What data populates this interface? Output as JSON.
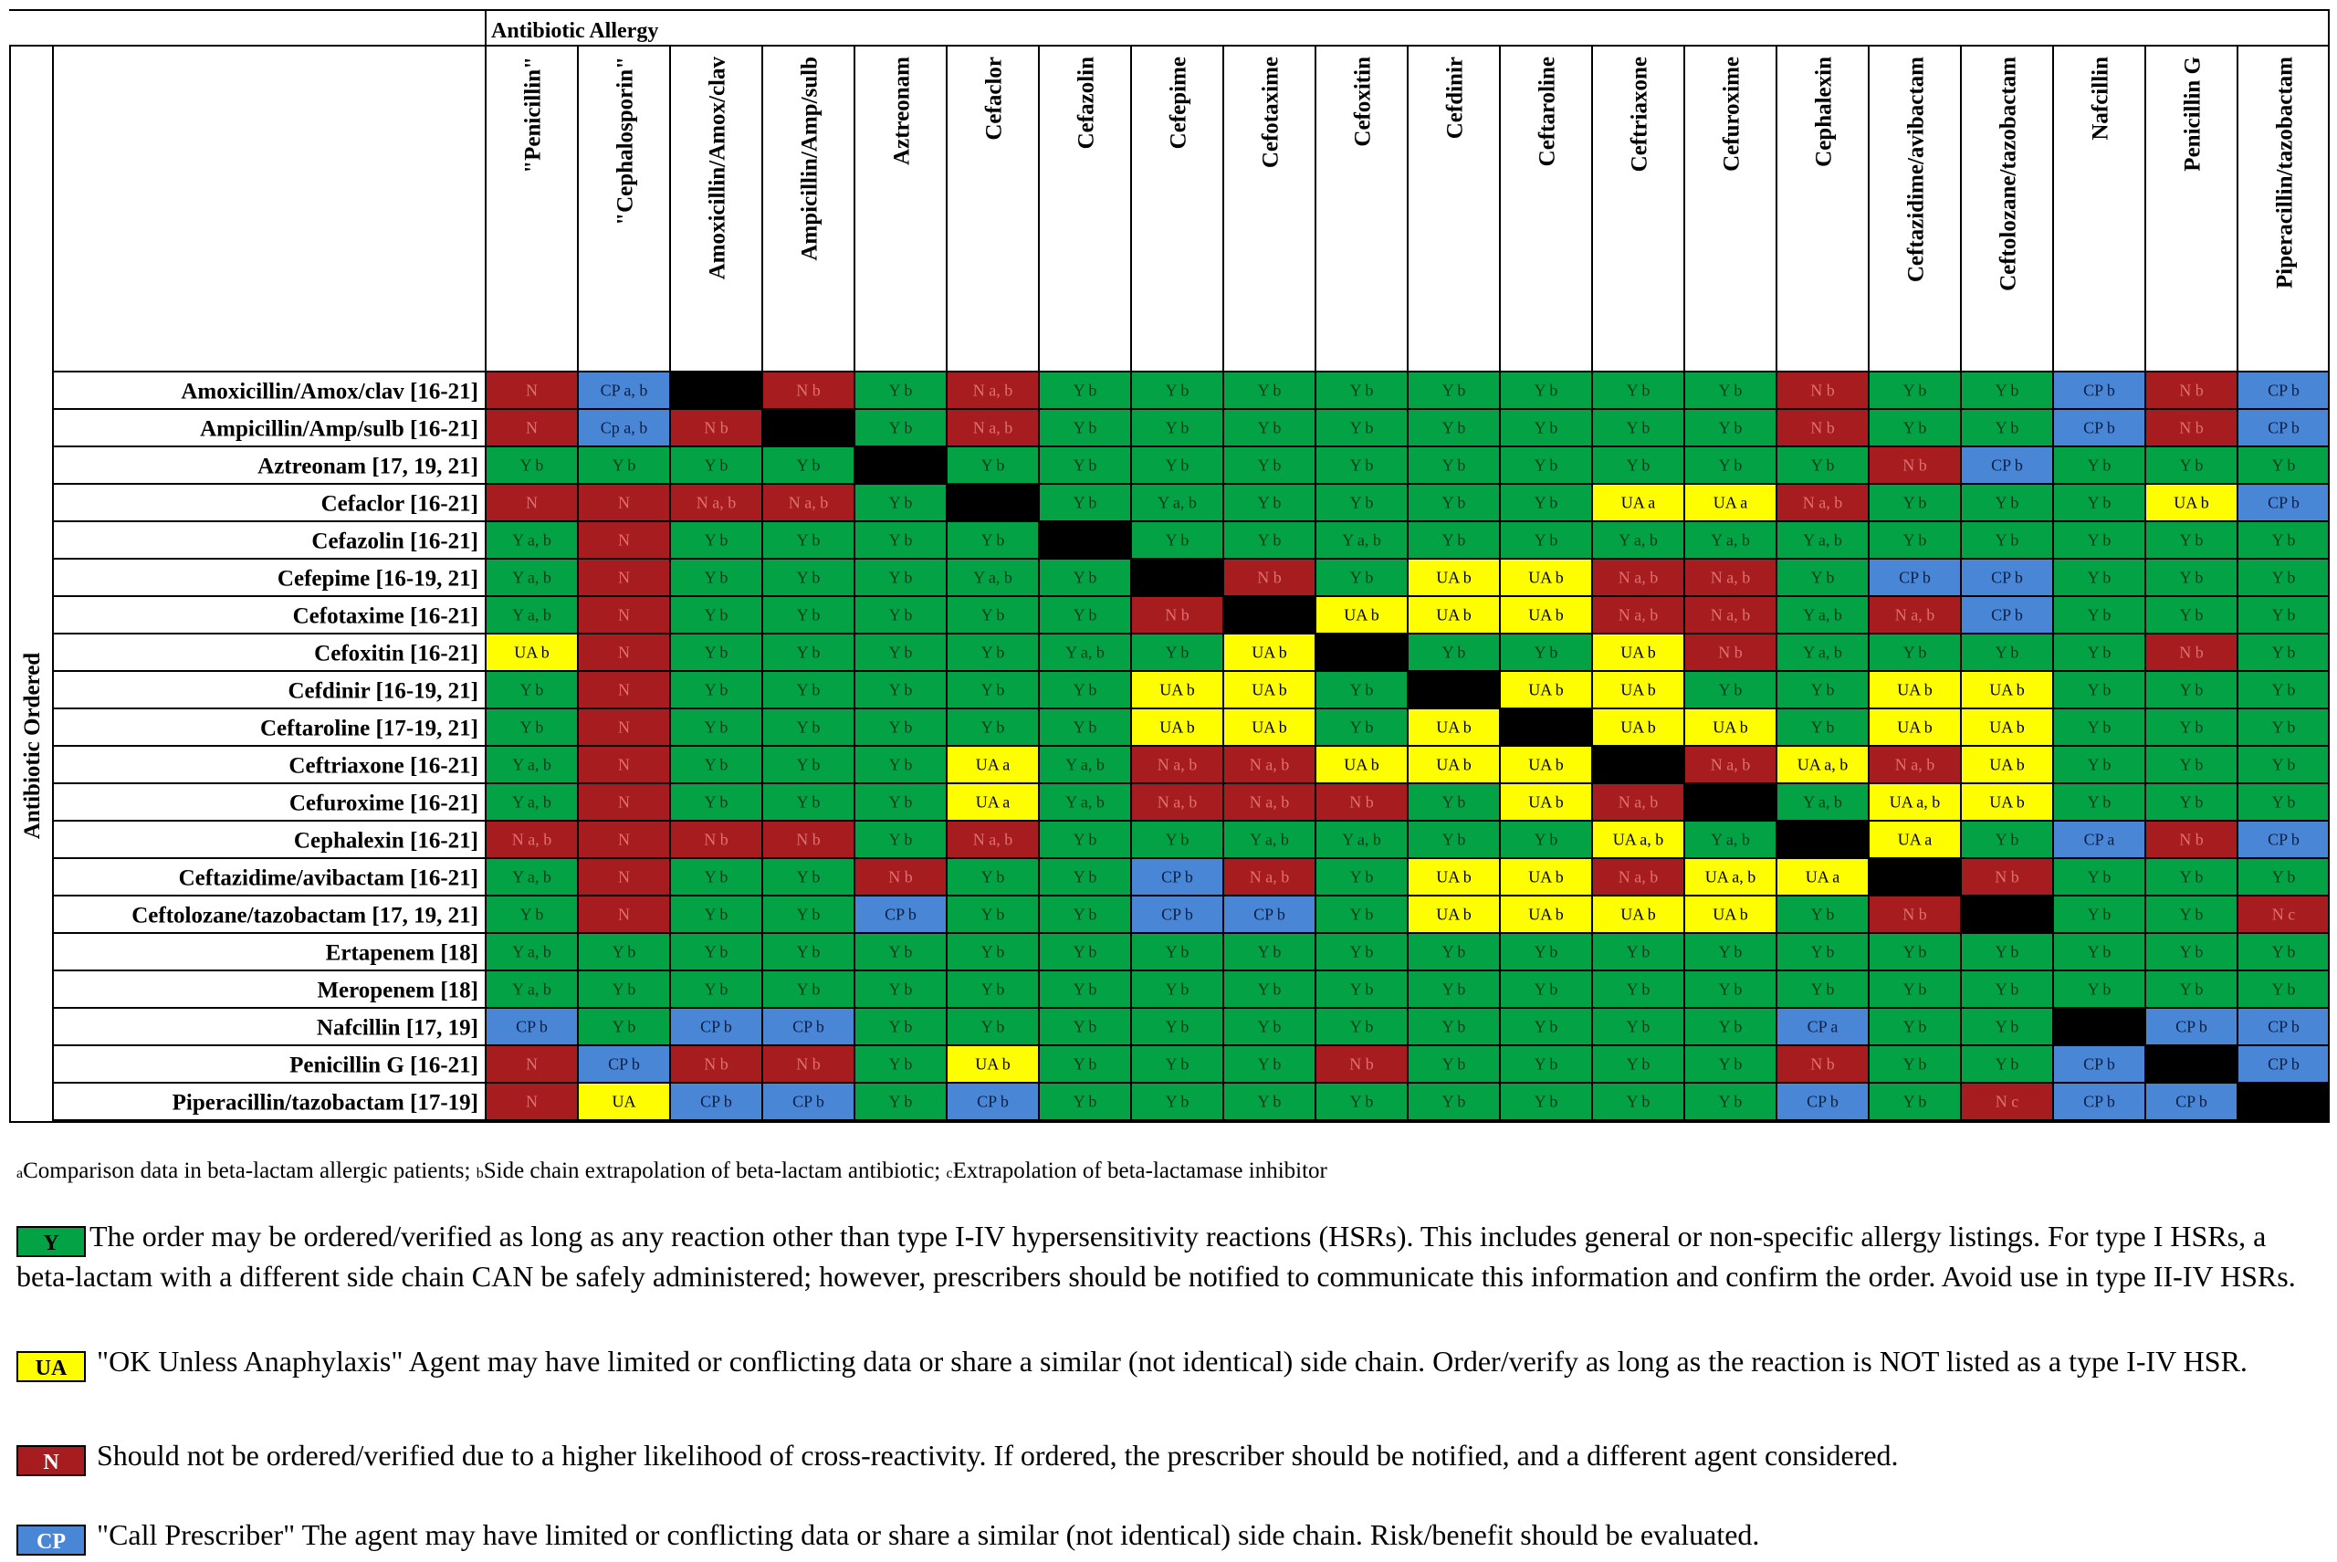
{
  "title": "Antibiotic Allergy",
  "side_label": "Antibiotic Ordered",
  "colors": {
    "Y": "#03a244",
    "UA": "#fefe00",
    "N": "#a61c1f",
    "CP": "#4a86d6",
    "X": "#000000"
  },
  "columns": [
    "\"Penicillin\"",
    "\"Cephalosporin\"",
    "Amoxicillin/Amox/clav",
    "Ampicillin/Amp/sulb",
    "Aztreonam",
    "Cefaclor",
    "Cefazolin",
    "Cefepime",
    "Cefotaxime",
    "Cefoxitin",
    "Cefdinir",
    "Ceftaroline",
    "Ceftriaxone",
    "Cefuroxime",
    "Cephalexin",
    "Ceftazidime/avibactam",
    "Ceftolozane/tazobactam",
    "Nafcillin",
    "Penicillin G",
    "Piperacillin/tazobactam"
  ],
  "rows": [
    {
      "label": "Amoxicillin/Amox/clav [16-21]",
      "cells": [
        "N",
        "CP a, b",
        "X",
        "N b",
        "Y b",
        "N a, b",
        "Y b",
        "Y b",
        "Y b",
        "Y b",
        "Y b",
        "Y b",
        "Y b",
        "Y b",
        "N b",
        "Y b",
        "Y b",
        "CP b",
        "N b",
        "CP b"
      ]
    },
    {
      "label": "Ampicillin/Amp/sulb  [16-21]",
      "cells": [
        "N",
        "Cp a, b",
        "N b",
        "X",
        "Y b",
        "N a, b",
        "Y b",
        "Y b",
        "Y b",
        "Y b",
        "Y b",
        "Y b",
        "Y b",
        "Y b",
        "N b",
        "Y b",
        "Y b",
        "CP b",
        "N b",
        "CP b"
      ]
    },
    {
      "label": "Aztreonam [17, 19, 21]",
      "cells": [
        "Y b",
        "Y b",
        "Y b",
        "Y b",
        "X",
        "Y b",
        "Y b",
        "Y b",
        "Y b",
        "Y b",
        "Y b",
        "Y b",
        "Y b",
        "Y b",
        "Y b",
        "N b",
        "CP b",
        "Y b",
        "Y b",
        "Y b"
      ]
    },
    {
      "label": "Cefaclor [16-21]",
      "cells": [
        "N",
        "N",
        "N a, b",
        "N a, b",
        "Y b",
        "X",
        "Y b",
        "Y a, b",
        "Y b",
        "Y b",
        "Y b",
        "Y b",
        "UA a",
        "UA a",
        "N a, b",
        "Y b",
        "Y b",
        "Y b",
        "UA b",
        "CP b"
      ]
    },
    {
      "label": "Cefazolin [16-21]",
      "cells": [
        "Y a, b",
        "N",
        "Y b",
        "Y b",
        "Y b",
        "Y b",
        "X",
        "Y b",
        "Y b",
        "Y a, b",
        "Y b",
        "Y b",
        "Y a, b",
        "Y a, b",
        "Y a, b",
        "Y b",
        "Y b",
        "Y b",
        "Y b",
        "Y b"
      ]
    },
    {
      "label": "Cefepime [16-19, 21]",
      "cells": [
        "Y a, b",
        "N",
        "Y b",
        "Y b",
        "Y b",
        "Y a, b",
        "Y b",
        "X",
        "N b",
        "Y b",
        "UA b",
        "UA b",
        "N a, b",
        "N a, b",
        "Y b",
        "CP b",
        "CP b",
        "Y b",
        "Y b",
        "Y b"
      ]
    },
    {
      "label": "Cefotaxime [16-21]",
      "cells": [
        "Y a, b",
        "N",
        "Y b",
        "Y b",
        "Y b",
        "Y b",
        "Y b",
        "N b",
        "X",
        "UA b",
        "UA b",
        "UA b",
        "N a, b",
        "N a, b",
        "Y a, b",
        "N a, b",
        "CP b",
        "Y b",
        "Y b",
        "Y b"
      ]
    },
    {
      "label": "Cefoxitin [16-21]",
      "cells": [
        "UA b",
        "N",
        "Y b",
        "Y b",
        "Y b",
        "Y b",
        "Y a, b",
        "Y b",
        "UA b",
        "X",
        "Y b",
        "Y b",
        "UA b",
        "N b",
        "Y a, b",
        "Y b",
        "Y b",
        "Y b",
        "N b",
        "Y b"
      ]
    },
    {
      "label": "Cefdinir [16-19, 21]",
      "cells": [
        "Y b",
        "N",
        "Y b",
        "Y b",
        "Y b",
        "Y b",
        "Y b",
        "UA b",
        "UA b",
        "Y b",
        "X",
        "UA b",
        "UA b",
        "Y b",
        "Y b",
        "UA b",
        "UA b",
        "Y b",
        "Y b",
        "Y b"
      ]
    },
    {
      "label": "Ceftaroline [17-19, 21]",
      "cells": [
        "Y b",
        "N",
        "Y b",
        "Y b",
        "Y b",
        "Y b",
        "Y b",
        "UA b",
        "UA b",
        "Y b",
        "UA b",
        "X",
        "UA b",
        "UA b",
        "Y b",
        "UA b",
        "UA b",
        "Y b",
        "Y b",
        "Y b"
      ]
    },
    {
      "label": "Ceftriaxone [16-21]",
      "cells": [
        "Y a, b",
        "N",
        "Y b",
        "Y b",
        "Y b",
        "UA a",
        "Y a, b",
        "N a, b",
        "N a, b",
        "UA b",
        "UA b",
        "UA b",
        "X",
        "N a, b",
        "UA a, b",
        "N a, b",
        "UA b",
        "Y b",
        "Y b",
        "Y b"
      ]
    },
    {
      "label": "Cefuroxime [16-21]",
      "cells": [
        "Y a, b",
        "N",
        "Y b",
        "Y b",
        "Y b",
        "UA a",
        "Y a, b",
        "N a, b",
        "N a, b",
        "N b",
        "Y b",
        "UA b",
        "N a, b",
        "X",
        "Y a, b",
        "UA a, b",
        "UA b",
        "Y b",
        "Y b",
        "Y b"
      ]
    },
    {
      "label": "Cephalexin [16-21]",
      "cells": [
        "N a, b",
        "N",
        "N b",
        "N b",
        "Y b",
        "N a, b",
        "Y b",
        "Y b",
        "Y a, b",
        "Y a, b",
        "Y b",
        "Y b",
        "UA a, b",
        "Y a, b",
        "X",
        "UA a",
        "Y b",
        "CP a",
        "N b",
        "CP b"
      ]
    },
    {
      "label": "Ceftazidime/avibactam [16-21]",
      "cells": [
        "Y a, b",
        "N",
        "Y b",
        "Y b",
        "N b",
        "Y b",
        "Y b",
        "CP b",
        "N a, b",
        "Y b",
        "UA b",
        "UA b",
        "N a, b",
        "UA a, b",
        "UA a",
        "X",
        "N b",
        "Y b",
        "Y b",
        "Y b"
      ]
    },
    {
      "label": "Ceftolozane/tazobactam [17, 19, 21]",
      "cells": [
        "Y b",
        "N",
        "Y b",
        "Y b",
        "CP b",
        "Y b",
        "Y b",
        "CP b",
        "CP b",
        "Y b",
        "UA b",
        "UA b",
        "UA b",
        "UA b",
        "Y b",
        "N b",
        "X",
        "Y b",
        "Y b",
        "N c"
      ]
    },
    {
      "label": "Ertapenem [18]",
      "cells": [
        "Y a, b",
        "Y b",
        "Y b",
        "Y b",
        "Y b",
        "Y b",
        "Y b",
        "Y b",
        "Y b",
        "Y b",
        "Y b",
        "Y b",
        "Y b",
        "Y b",
        "Y b",
        "Y b",
        "Y b",
        "Y b",
        "Y b",
        "Y b"
      ]
    },
    {
      "label": "Meropenem [18]",
      "cells": [
        "Y a, b",
        "Y b",
        "Y b",
        "Y b",
        "Y b",
        "Y b",
        "Y b",
        "Y b",
        "Y b",
        "Y b",
        "Y b",
        "Y b",
        "Y b",
        "Y b",
        "Y b",
        "Y b",
        "Y b",
        "Y b",
        "Y b",
        "Y b"
      ]
    },
    {
      "label": "Nafcillin [17, 19]",
      "cells": [
        "CP b",
        "Y b",
        "CP b",
        "CP b",
        "Y b",
        "Y b",
        "Y b",
        "Y b",
        "Y b",
        "Y b",
        "Y b",
        "Y b",
        "Y b",
        "Y b",
        "CP a",
        "Y b",
        "Y b",
        "X",
        "CP b",
        "CP b"
      ]
    },
    {
      "label": "Penicillin G [16-21]",
      "cells": [
        "N",
        "CP b",
        "N b",
        "N b",
        "Y b",
        "UA b",
        "Y b",
        "Y b",
        "Y b",
        "N b",
        "Y b",
        "Y b",
        "Y b",
        "Y b",
        "N b",
        "Y b",
        "Y b",
        "CP b",
        "X",
        "CP b"
      ]
    },
    {
      "label": "Piperacillin/tazobactam [17-19]",
      "cells": [
        "N",
        "UA",
        "CP b",
        "CP b",
        "Y b",
        "CP b",
        "Y b",
        "Y b",
        "Y b",
        "Y b",
        "Y b",
        "Y b",
        "Y b",
        "Y b",
        "CP b",
        "Y b",
        "N c",
        "CP b",
        "CP b",
        "X"
      ]
    }
  ],
  "footnote": {
    "a_sup": "a",
    "a_text": "Comparison data in beta-lactam allergic patients; ",
    "b_sup": "b",
    "b_text": "Side chain extrapolation of beta-lactam antibiotic; ",
    "c_sup": "c",
    "c_text": "Extrapolation of beta-lactamase inhibitor"
  },
  "legend": {
    "y": {
      "chip": "Y",
      "text": "The order may be ordered/verified as long as any reaction other than type I-IV hypersensitivity reactions (HSRs). This includes general or non-specific allergy listings. For type I HSRs, a beta-lactam with a different side chain CAN be safely administered; however, prescribers should be notified to communicate this information and confirm the order.  Avoid use in type II-IV HSRs."
    },
    "ua": {
      "chip": "UA",
      "text": " \"OK Unless Anaphylaxis\" Agent may have limited or conflicting data or share a similar (not identical) side chain.  Order/verify as long as the reaction is NOT listed as a type I-IV HSR."
    },
    "n": {
      "chip": "N",
      "text": " Should not be ordered/verified due to a higher likelihood of cross-reactivity. If ordered, the prescriber should be notified, and a different agent considered."
    },
    "cp": {
      "chip": "CP",
      "text": " \"Call Prescriber\" The agent may have limited or conflicting data or share a similar (not identical) side chain.  Risk/benefit should be evaluated."
    }
  }
}
